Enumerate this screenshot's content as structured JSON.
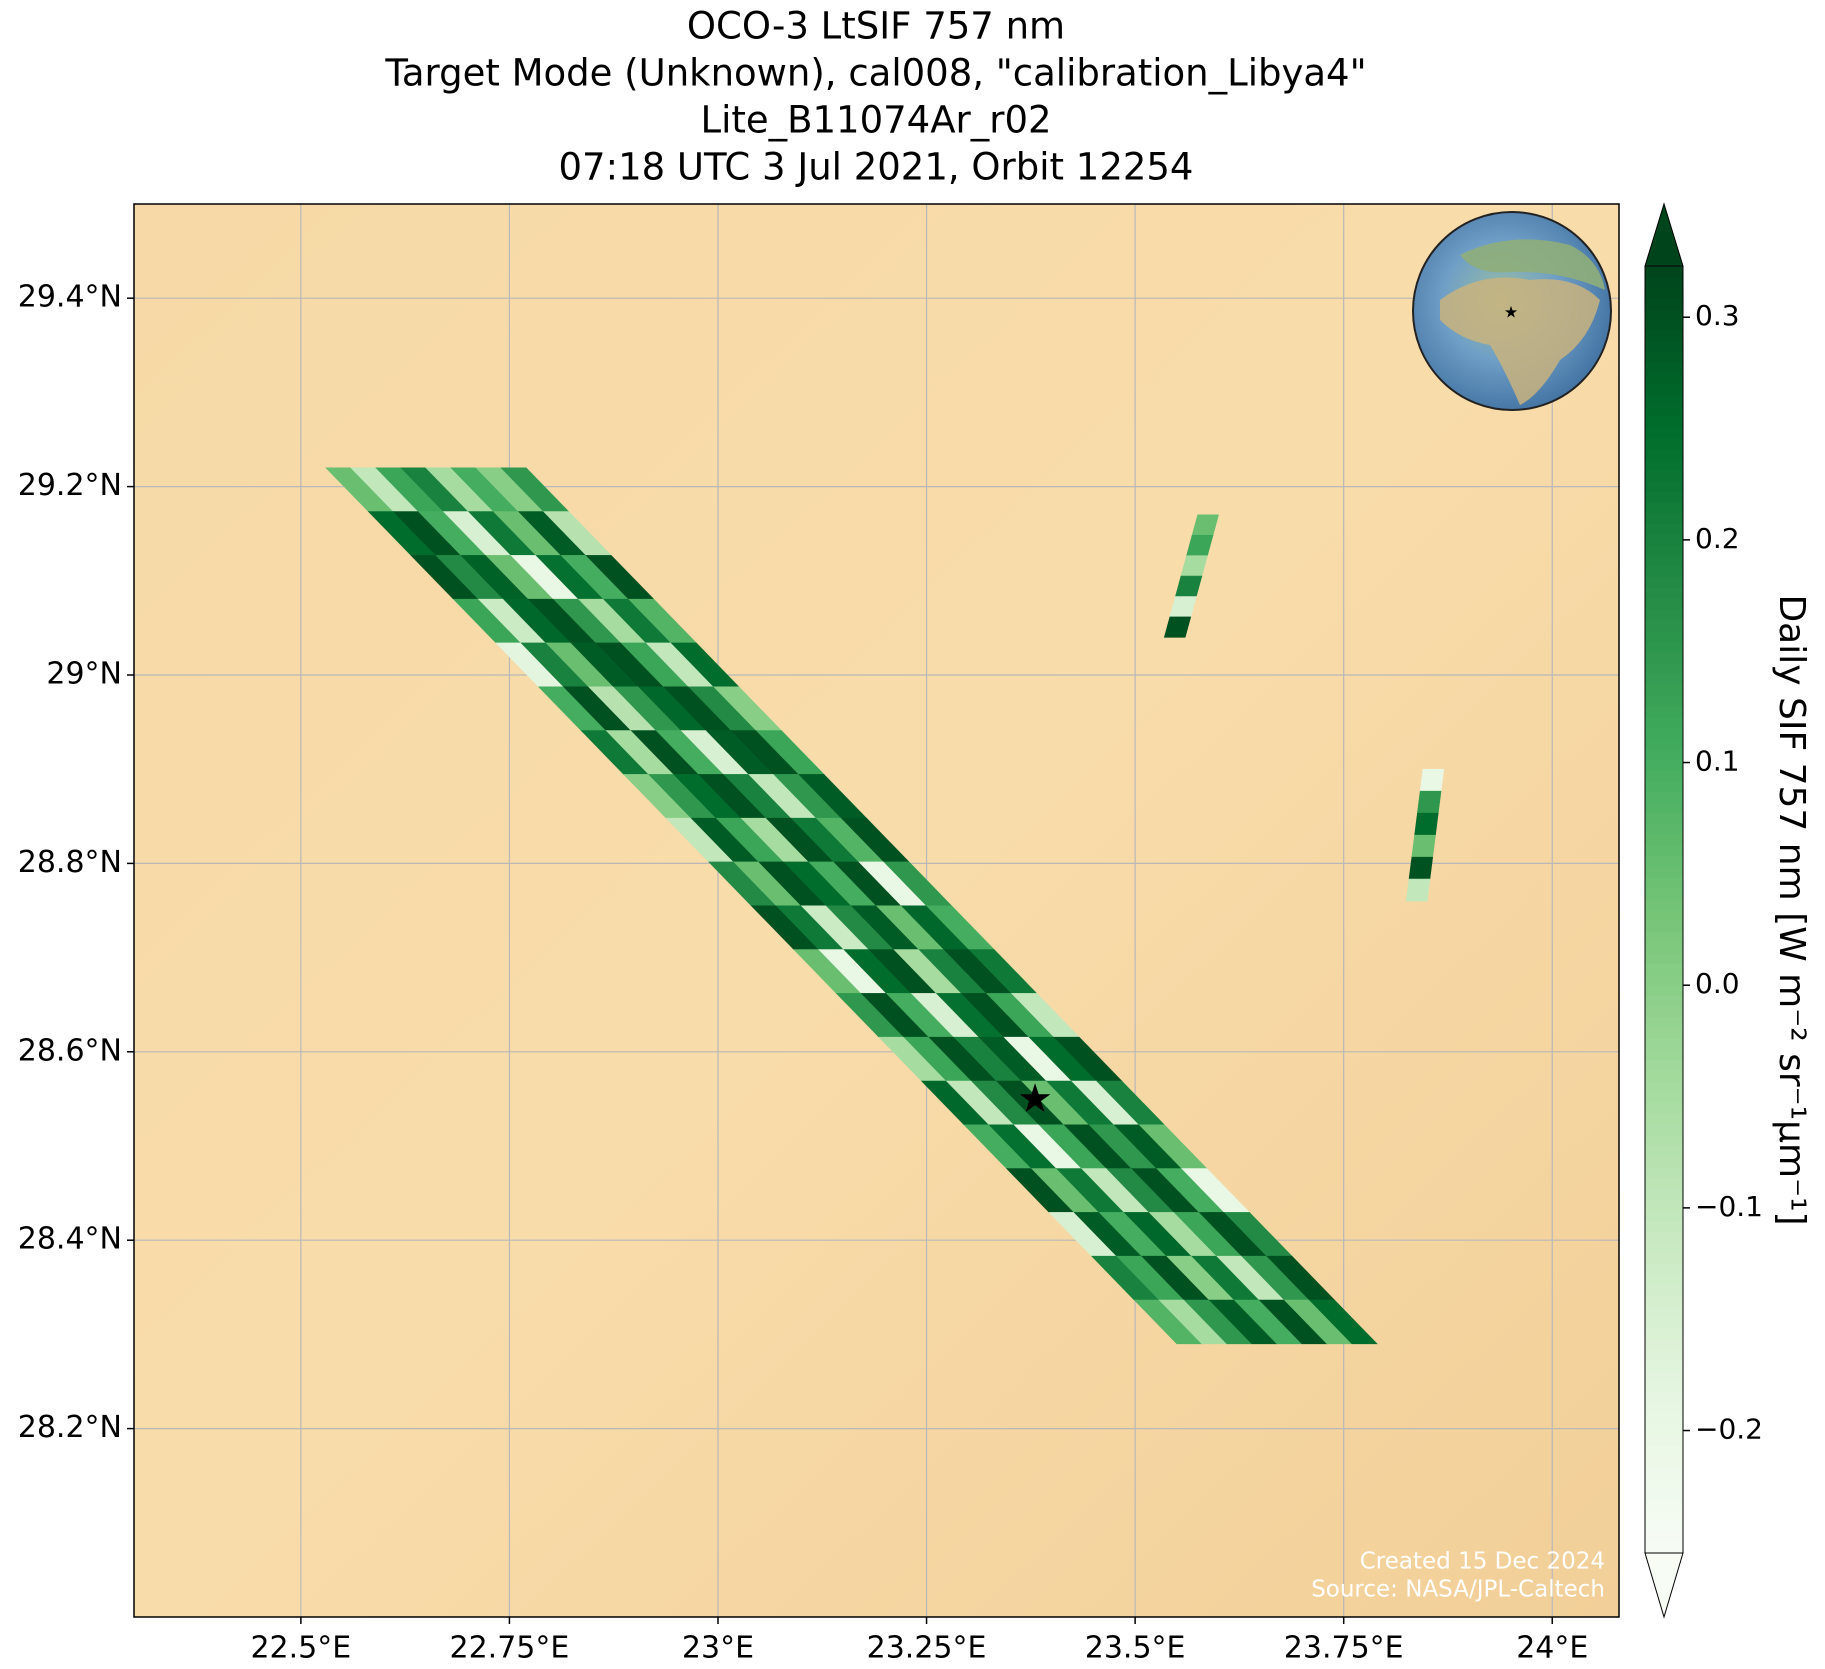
{
  "chart_data": {
    "type": "map",
    "title": [
      "OCO-3 LtSIF 757 nm",
      "Target Mode (Unknown), cal008, \"calibration_Libya4\"",
      "Lite_B11074Ar_r02",
      "07:18 UTC 3 Jul 2021, Orbit 12254"
    ],
    "xlim": [
      22.3,
      24.08
    ],
    "ylim": [
      28.0,
      29.5
    ],
    "xticks": [
      {
        "value": 22.5,
        "label": "22.5°E"
      },
      {
        "value": 22.75,
        "label": "22.75°E"
      },
      {
        "value": 23,
        "label": "23°E"
      },
      {
        "value": 23.25,
        "label": "23.25°E"
      },
      {
        "value": 23.5,
        "label": "23.5°E"
      },
      {
        "value": 23.75,
        "label": "23.75°E"
      },
      {
        "value": 24,
        "label": "24°E"
      }
    ],
    "yticks": [
      {
        "value": 28.2,
        "label": "28.2°N"
      },
      {
        "value": 28.4,
        "label": "28.4°N"
      },
      {
        "value": 28.6,
        "label": "28.6°N"
      },
      {
        "value": 28.8,
        "label": "28.8°N"
      },
      {
        "value": 29,
        "label": "29°N"
      },
      {
        "value": 29.2,
        "label": "29.2°N"
      },
      {
        "value": 29.4,
        "label": "29.4°N"
      }
    ],
    "grid": true,
    "colorbar": {
      "label": "Daily SIF 757 nm [W m⁻² sr⁻¹µm⁻¹]",
      "lim": [
        -0.255,
        0.323
      ],
      "ticks": [
        {
          "value": -0.2,
          "label": "−0.2"
        },
        {
          "value": -0.1,
          "label": "−0.1"
        },
        {
          "value": 0,
          "label": "0.0"
        },
        0.1,
        0.2,
        0.3
      ],
      "colors": [
        "#f7fcf5",
        "#e5f5e0",
        "#c7e9c0",
        "#a1d99b",
        "#74c476",
        "#41ab5d",
        "#238b45",
        "#006d2c",
        "#00441b"
      ]
    },
    "swaths": [
      {
        "start": [
          22.53,
          29.22
        ],
        "end": [
          23.55,
          28.29
        ],
        "width": 0.24,
        "values": [
          [
            0.05,
            -0.1,
            0.12,
            0.2,
            -0.05,
            0.1,
            0.0,
            0.15
          ],
          [
            0.25,
            0.3,
            0.1,
            -0.15,
            0.22,
            0.05,
            0.28,
            -0.08
          ],
          [
            0.3,
            0.18,
            0.27,
            0.05,
            -0.2,
            0.24,
            0.1,
            0.3
          ],
          [
            0.12,
            -0.12,
            0.26,
            0.3,
            0.15,
            -0.05,
            0.22,
            0.08
          ],
          [
            -0.18,
            0.2,
            0.05,
            0.28,
            0.3,
            0.12,
            -0.1,
            0.25
          ],
          [
            0.1,
            0.3,
            -0.08,
            0.15,
            0.26,
            0.3,
            0.18,
            0.0
          ],
          [
            0.22,
            -0.05,
            0.3,
            0.1,
            -0.15,
            0.28,
            0.3,
            0.12
          ],
          [
            0.0,
            0.15,
            0.25,
            0.3,
            0.2,
            -0.1,
            0.15,
            0.28
          ],
          [
            -0.1,
            0.28,
            0.12,
            -0.05,
            0.3,
            0.22,
            0.08,
            0.3
          ],
          [
            0.18,
            0.05,
            0.3,
            0.25,
            0.1,
            0.3,
            -0.2,
            0.15
          ],
          [
            0.3,
            0.22,
            -0.12,
            0.18,
            0.28,
            0.05,
            0.26,
            0.1
          ],
          [
            0.05,
            -0.2,
            0.25,
            0.3,
            -0.05,
            0.2,
            0.3,
            0.22
          ],
          [
            0.15,
            0.3,
            0.1,
            -0.15,
            0.24,
            0.3,
            0.12,
            -0.1
          ],
          [
            -0.05,
            0.12,
            0.3,
            0.2,
            0.28,
            -0.2,
            0.25,
            0.3
          ],
          [
            0.26,
            -0.1,
            0.18,
            0.3,
            0.05,
            0.22,
            -0.15,
            0.2
          ],
          [
            0.1,
            0.24,
            -0.2,
            0.12,
            0.3,
            0.15,
            0.28,
            0.05
          ],
          [
            0.3,
            0.05,
            0.22,
            -0.1,
            0.18,
            0.3,
            0.1,
            -0.2
          ],
          [
            -0.15,
            0.28,
            0.1,
            0.26,
            -0.05,
            0.12,
            0.3,
            0.18
          ],
          [
            0.2,
            0.12,
            0.3,
            0.0,
            0.22,
            -0.1,
            0.15,
            0.3
          ],
          [
            0.08,
            -0.05,
            0.15,
            0.28,
            0.1,
            0.3,
            0.05,
            0.25
          ]
        ]
      },
      {
        "start": [
          23.575,
          29.17
        ],
        "end": [
          23.535,
          29.04
        ],
        "width": 0.025,
        "values": [
          [
            0.05
          ],
          [
            0.12
          ],
          [
            -0.05
          ],
          [
            0.2
          ],
          [
            -0.15
          ],
          [
            0.3
          ]
        ]
      },
      {
        "start": [
          23.845,
          28.9
        ],
        "end": [
          23.825,
          28.76
        ],
        "width": 0.025,
        "values": [
          [
            -0.2
          ],
          [
            0.15
          ],
          [
            0.25
          ],
          [
            0.05
          ],
          [
            0.3
          ],
          [
            -0.1
          ]
        ]
      }
    ],
    "target": [
      23.38,
      28.55
    ],
    "annotations": [
      "Created 15 Dec 2024",
      "Source: NASA/JPL-Caltech"
    ]
  }
}
